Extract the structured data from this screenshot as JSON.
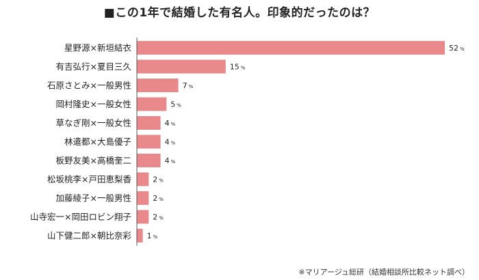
{
  "chart_data": {
    "type": "bar",
    "orientation": "horizontal",
    "title": "■この1年で結婚した有名人。印象的だったのは？",
    "categories": [
      "星野源×新垣結衣",
      "有吉弘行×夏目三久",
      "石原さとみ×一般男性",
      "岡村隆史×一般女性",
      "草なぎ剛×一般女性",
      "林遣都×大島優子",
      "板野友美×高橋奎二",
      "松坂桃李×戸田恵梨香",
      "加藤綾子×一般男性",
      "山寺宏一×岡田ロビン翔子",
      "山下健二郎×朝比奈彩"
    ],
    "values": [
      52,
      15,
      7,
      5,
      4,
      4,
      4,
      2,
      2,
      2,
      1
    ],
    "value_unit": "%",
    "xlim": [
      0,
      52
    ],
    "grid": false,
    "bar_color": "#e8888a",
    "axis_color": "#555555"
  },
  "source_note": "※マリアージュ総研（結婚相談所比較ネット調べ）"
}
